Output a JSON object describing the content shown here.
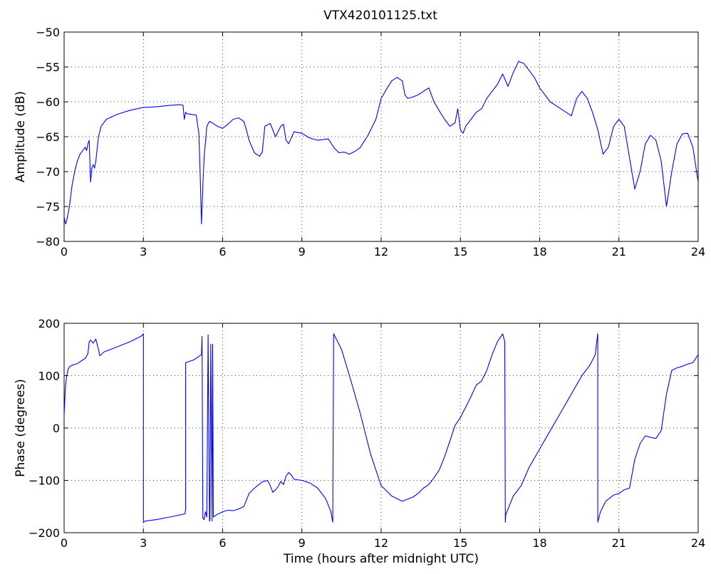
{
  "figure": {
    "title": "VTX420101125.txt"
  },
  "chart_data": [
    {
      "type": "line",
      "title": "VTX420101125.txt",
      "xlabel": "",
      "ylabel": "Amplitude (dB)",
      "xlim": [
        0,
        24
      ],
      "ylim": [
        -80,
        -50
      ],
      "xticks": [
        0,
        3,
        6,
        9,
        12,
        15,
        18,
        21,
        24
      ],
      "yticks": [
        -80,
        -75,
        -70,
        -65,
        -60,
        -55,
        -50
      ],
      "grid": true,
      "series": [
        {
          "color": "#0000ff",
          "x": [
            0,
            0.05,
            0.1,
            0.15,
            0.2,
            0.25,
            0.3,
            0.4,
            0.5,
            0.6,
            0.7,
            0.8,
            0.85,
            0.9,
            0.95,
            1.0,
            1.05,
            1.1,
            1.15,
            1.2,
            1.3,
            1.4,
            1.6,
            2.0,
            2.5,
            3.0,
            3.5,
            4.0,
            4.4,
            4.5,
            4.55,
            4.6,
            4.65,
            5.0,
            5.1,
            5.15,
            5.2,
            5.25,
            5.3,
            5.4,
            5.5,
            5.6,
            5.8,
            6.0,
            6.2,
            6.4,
            6.6,
            6.8,
            6.9,
            7.0,
            7.2,
            7.4,
            7.5,
            7.6,
            7.8,
            8.0,
            8.2,
            8.3,
            8.4,
            8.5,
            8.7,
            9.0,
            9.3,
            9.6,
            10.0,
            10.2,
            10.4,
            10.6,
            10.8,
            11.0,
            11.2,
            11.5,
            11.8,
            12.0,
            12.2,
            12.4,
            12.6,
            12.8,
            12.9,
            13.0,
            13.2,
            13.4,
            13.6,
            13.8,
            14.0,
            14.2,
            14.4,
            14.6,
            14.8,
            14.9,
            15.0,
            15.1,
            15.2,
            15.4,
            15.6,
            15.8,
            16.0,
            16.2,
            16.4,
            16.6,
            16.8,
            17.0,
            17.2,
            17.4,
            17.6,
            17.8,
            18.0,
            18.2,
            18.4,
            18.6,
            18.8,
            19.0,
            19.2,
            19.4,
            19.6,
            19.8,
            20.0,
            20.2,
            20.4,
            20.6,
            20.8,
            21.0,
            21.2,
            21.4,
            21.6,
            21.8,
            22.0,
            22.2,
            22.4,
            22.6,
            22.8,
            23.0,
            23.2,
            23.4,
            23.6,
            23.8,
            24.0
          ],
          "y": [
            -76.5,
            -77.5,
            -77,
            -76,
            -75,
            -73.5,
            -72,
            -70,
            -68.5,
            -67.5,
            -67,
            -66.5,
            -67,
            -66,
            -65.5,
            -71.5,
            -69.5,
            -69,
            -69.5,
            -68.5,
            -65,
            -63.5,
            -62.5,
            -61.8,
            -61.2,
            -60.8,
            -60.7,
            -60.5,
            -60.4,
            -60.5,
            -62.5,
            -61.5,
            -61.7,
            -61.9,
            -64.5,
            -70.5,
            -77.5,
            -72,
            -68,
            -63.5,
            -62.8,
            -63,
            -63.5,
            -63.8,
            -63.2,
            -62.5,
            -62.3,
            -62.8,
            -64,
            -65.5,
            -67.3,
            -67.8,
            -67.2,
            -63.5,
            -63.1,
            -65,
            -63.5,
            -63.2,
            -65.5,
            -66,
            -64.3,
            -64.5,
            -65.2,
            -65.5,
            -65.3,
            -66.5,
            -67.3,
            -67.2,
            -67.5,
            -67.1,
            -66.6,
            -64.8,
            -62.5,
            -59.5,
            -58.2,
            -57,
            -56.5,
            -57,
            -59,
            -59.5,
            -59.3,
            -59,
            -58.5,
            -58,
            -60,
            -61.3,
            -62.5,
            -63.5,
            -63,
            -61,
            -64,
            -64.5,
            -63.5,
            -62.5,
            -61.5,
            -61,
            -59.5,
            -58.5,
            -57.5,
            -56,
            -57.8,
            -55.8,
            -54.2,
            -54.5,
            -55.5,
            -56.5,
            -58,
            -59,
            -60,
            -60.5,
            -61,
            -61.5,
            -62,
            -59.5,
            -58.5,
            -59.5,
            -61.5,
            -64,
            -67.5,
            -66.5,
            -63.5,
            -62.5,
            -63.5,
            -68,
            -72.5,
            -70,
            -66,
            -64.8,
            -65.5,
            -68.5,
            -75,
            -70,
            -66,
            -64.6,
            -64.5,
            -66.5,
            -71.5
          ]
        }
      ]
    },
    {
      "type": "line",
      "title": "",
      "xlabel": "Time (hours after midnight UTC)",
      "ylabel": "Phase (degrees)",
      "xlim": [
        0,
        24
      ],
      "ylim": [
        -200,
        200
      ],
      "xticks": [
        0,
        3,
        6,
        9,
        12,
        15,
        18,
        21,
        24
      ],
      "yticks": [
        -200,
        -100,
        0,
        100,
        200
      ],
      "grid": true,
      "series": [
        {
          "color": "#0000ff",
          "x": [
            0,
            0.05,
            0.1,
            0.15,
            0.2,
            0.3,
            0.5,
            0.7,
            0.8,
            0.9,
            0.95,
            1.0,
            1.1,
            1.2,
            1.3,
            1.35,
            1.5,
            2.0,
            2.5,
            2.9,
            2.97,
            3.0,
            3.0,
            3.05,
            3.5,
            4.0,
            4.58,
            4.59,
            4.6,
            4.6,
            4.9,
            5.2,
            5.22,
            5.25,
            5.3,
            5.35,
            5.4,
            5.45,
            5.5,
            5.52,
            5.55,
            5.6,
            5.62,
            5.65,
            5.7,
            5.8,
            6.0,
            6.2,
            6.4,
            6.6,
            6.8,
            7.0,
            7.2,
            7.5,
            7.7,
            7.8,
            7.9,
            8.0,
            8.1,
            8.2,
            8.3,
            8.4,
            8.5,
            8.6,
            8.7,
            9.0,
            9.3,
            9.6,
            9.9,
            10.1,
            10.15,
            10.17,
            10.2,
            10.3,
            10.5,
            10.8,
            11.2,
            11.6,
            12.0,
            12.4,
            12.8,
            13.2,
            13.4,
            13.6,
            13.8,
            14.0,
            14.2,
            14.4,
            14.6,
            14.8,
            15.0,
            15.2,
            15.4,
            15.6,
            15.8,
            16.0,
            16.2,
            16.4,
            16.6,
            16.68,
            16.7,
            16.72,
            16.8,
            17.0,
            17.3,
            17.6,
            18.0,
            18.4,
            18.8,
            19.2,
            19.6,
            19.9,
            20.1,
            20.2,
            20.2,
            20.25,
            20.3,
            20.5,
            20.8,
            21.0,
            21.2,
            21.4,
            21.6,
            21.8,
            22.0,
            22.2,
            22.4,
            22.6,
            22.8,
            23.0,
            23.2,
            23.4,
            23.6,
            23.8,
            24.0
          ],
          "y": [
            25,
            80,
            100,
            112,
            117,
            120,
            123,
            130,
            133,
            142,
            165,
            168,
            162,
            170,
            150,
            138,
            145,
            155,
            165,
            175,
            178,
            180,
            -180,
            -178,
            -175,
            -170,
            -164,
            -158,
            -155,
            125,
            130,
            140,
            175,
            -172,
            -175,
            -160,
            -170,
            178,
            -178,
            -175,
            160,
            -178,
            160,
            -170,
            -168,
            -165,
            -160,
            -157,
            -158,
            -155,
            -150,
            -125,
            -115,
            -103,
            -100,
            -110,
            -123,
            -118,
            -112,
            -102,
            -108,
            -92,
            -85,
            -90,
            -98,
            -100,
            -105,
            -115,
            -135,
            -160,
            -175,
            -180,
            180,
            170,
            150,
            100,
            30,
            -50,
            -110,
            -130,
            -140,
            -132,
            -125,
            -115,
            -108,
            -95,
            -80,
            -55,
            -25,
            5,
            20,
            40,
            60,
            82,
            90,
            110,
            140,
            165,
            180,
            165,
            -180,
            -165,
            -155,
            -130,
            -110,
            -75,
            -40,
            -5,
            30,
            65,
            100,
            120,
            140,
            180,
            -180,
            -170,
            -160,
            -140,
            -128,
            -125,
            -118,
            -115,
            -60,
            -30,
            -15,
            -18,
            -20,
            -5,
            65,
            110,
            115,
            118,
            122,
            125,
            140
          ]
        }
      ]
    }
  ]
}
